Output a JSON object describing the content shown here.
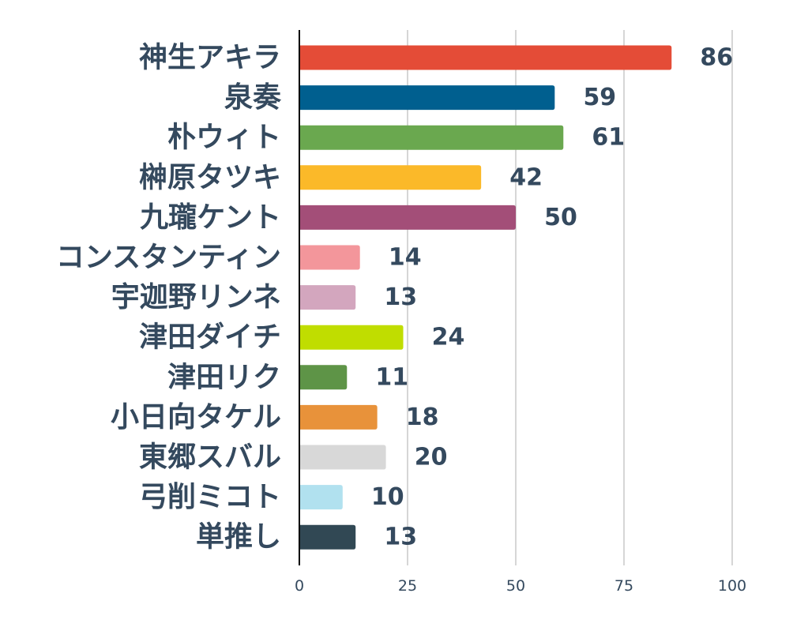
{
  "chart_data": {
    "type": "bar",
    "orientation": "horizontal",
    "title": "",
    "xlabel": "",
    "ylabel": "",
    "xlim": [
      0,
      100
    ],
    "xticks": [
      0,
      25,
      50,
      75,
      100
    ],
    "grid": true,
    "categories": [
      "神生アキラ",
      "泉奏",
      "朴ウィト",
      "榊原タツキ",
      "九瓏ケント",
      "コンスタンティン",
      "宇迦野リンネ",
      "津田ダイチ",
      "津田リク",
      "小日向タケル",
      "東郷スバル",
      "弓削ミコト",
      "単推し"
    ],
    "values": [
      86,
      59,
      61,
      42,
      50,
      14,
      13,
      24,
      11,
      18,
      20,
      10,
      13
    ],
    "colors": [
      "#e44c37",
      "#005f8f",
      "#6aa84f",
      "#fbb929",
      "#a34e78",
      "#f3969b",
      "#d3a6be",
      "#c0dd00",
      "#5e9447",
      "#e8923a",
      "#d8d8d8",
      "#b1e1ef",
      "#314854"
    ]
  }
}
